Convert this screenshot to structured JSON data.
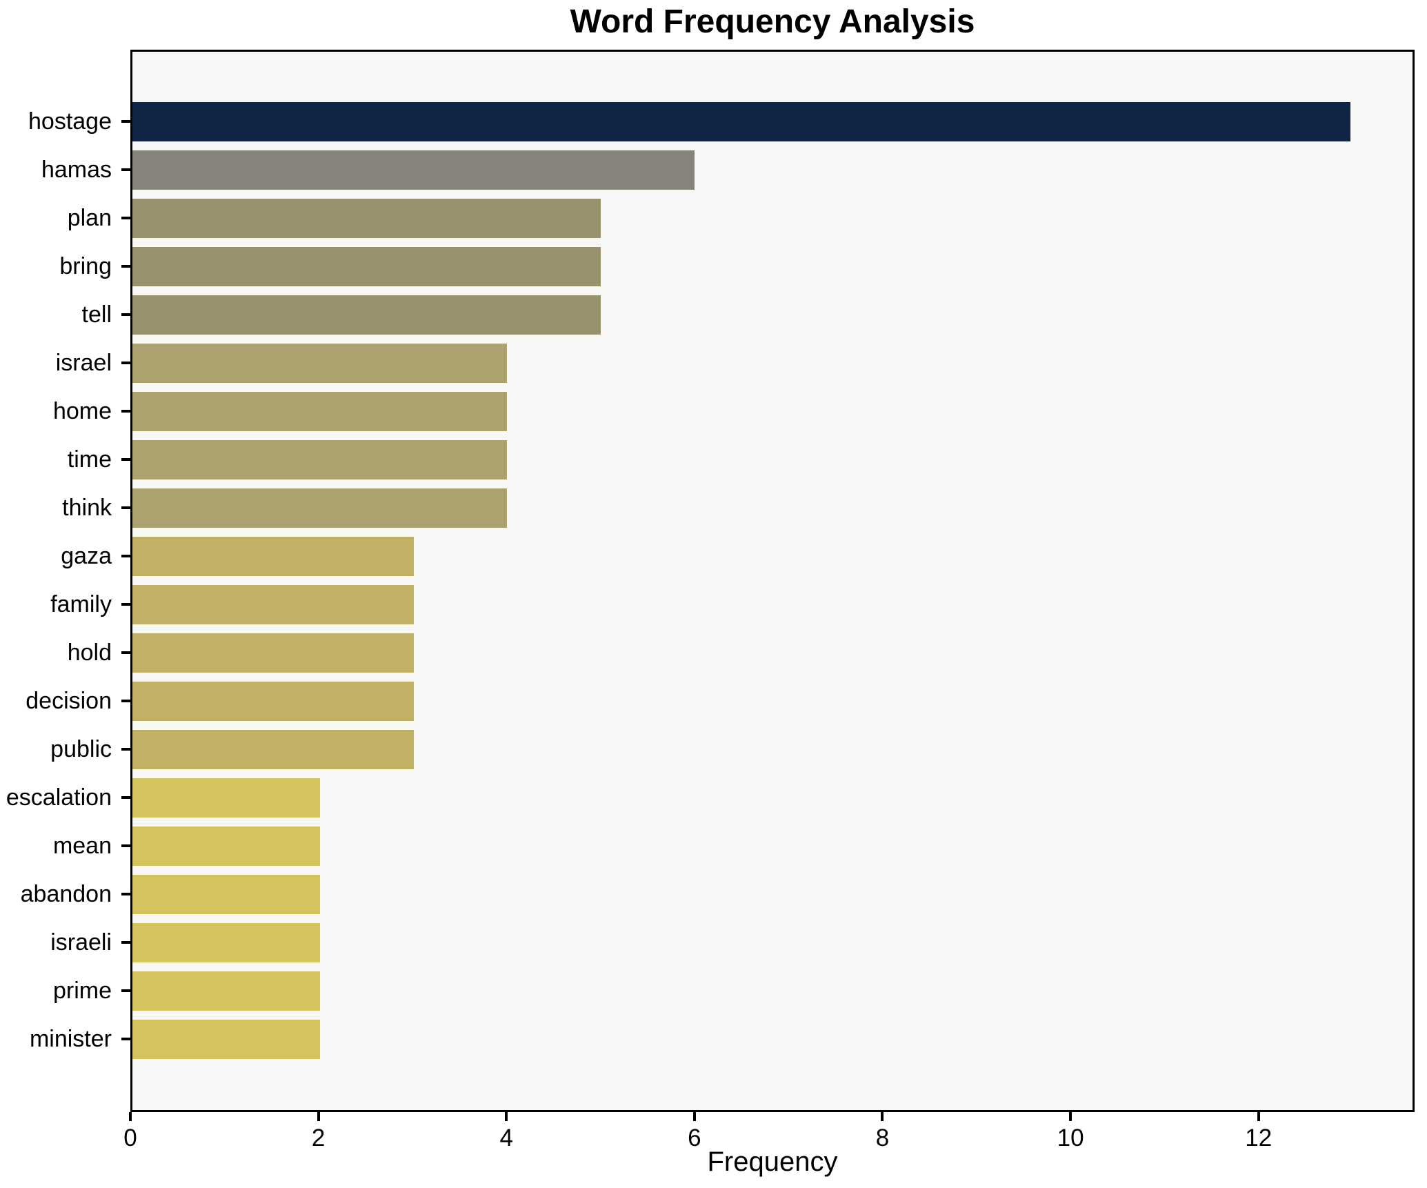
{
  "page": {
    "background": "#ffffff"
  },
  "chart_data": {
    "type": "bar",
    "orientation": "horizontal",
    "title": "Word Frequency Analysis",
    "xlabel": "Frequency",
    "ylabel": "",
    "categories": [
      "hostage",
      "hamas",
      "plan",
      "bring",
      "tell",
      "israel",
      "home",
      "time",
      "think",
      "gaza",
      "family",
      "hold",
      "decision",
      "public",
      "escalation",
      "mean",
      "abandon",
      "israeli",
      "prime",
      "minister"
    ],
    "values": [
      13,
      6,
      5,
      5,
      5,
      4,
      4,
      4,
      4,
      3,
      3,
      3,
      3,
      3,
      2,
      2,
      2,
      2,
      2,
      2
    ],
    "bar_colors": [
      "#102546",
      "#85837a",
      "#98926f",
      "#98926f",
      "#98926f",
      "#aba26f",
      "#aba26f",
      "#aba26f",
      "#aba26f",
      "#c0b164",
      "#c0b164",
      "#c0b164",
      "#c0b164",
      "#c0b164",
      "#d5c35e",
      "#d5c35e",
      "#d5c35e",
      "#d5c35e",
      "#d5c35e",
      "#d5c35e"
    ],
    "xticks": [
      0,
      2,
      4,
      6,
      8,
      10,
      12
    ],
    "xlim": [
      0,
      13.66
    ],
    "grid": false,
    "legend": null,
    "plot_bg": "#f7f7f6",
    "spine_color": "#000000",
    "text_color": "#000000"
  }
}
